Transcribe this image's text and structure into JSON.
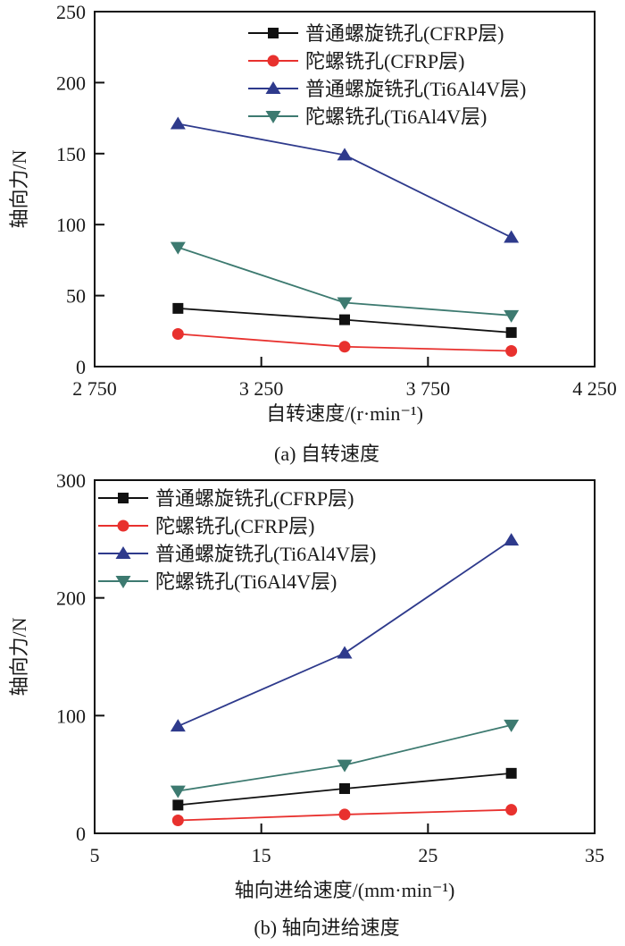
{
  "chart_data": [
    {
      "type": "line",
      "caption": "(a) 自转速度",
      "xlabel": "自转速度/(r·min⁻¹)",
      "ylabel": "轴向力/N",
      "xlim": [
        2750,
        4250
      ],
      "ylim": [
        0,
        250
      ],
      "xticks": [
        2750,
        3250,
        3750,
        4250
      ],
      "xtick_labels": [
        "2 750",
        "3 250",
        "3 750",
        "4 250"
      ],
      "yticks": [
        0,
        50,
        100,
        150,
        200,
        250
      ],
      "ytick_labels": [
        "0",
        "50",
        "100",
        "150",
        "200",
        "250"
      ],
      "legend_position": "top-right",
      "x": [
        3000,
        3500,
        4000
      ],
      "series": [
        {
          "name": "普通螺旋铣孔(CFRP层)",
          "marker": "square",
          "color": "#111111",
          "values": [
            41,
            33,
            24
          ]
        },
        {
          "name": "陀螺铣孔(CFRP层)",
          "marker": "circle",
          "color": "#e8312e",
          "values": [
            23,
            14,
            11
          ]
        },
        {
          "name": "普通螺旋铣孔(Ti6Al4V层)",
          "marker": "triangle-up",
          "color": "#2e3a8c",
          "values": [
            171,
            149,
            91
          ]
        },
        {
          "name": "陀螺铣孔(Ti6Al4V层)",
          "marker": "triangle-down",
          "color": "#3d7a70",
          "values": [
            84,
            45,
            36
          ]
        }
      ]
    },
    {
      "type": "line",
      "caption": "(b) 轴向进给速度",
      "xlabel": "轴向进给速度/(mm·min⁻¹)",
      "ylabel": "轴向力/N",
      "xlim": [
        5,
        35
      ],
      "ylim": [
        0,
        300
      ],
      "xticks": [
        5,
        15,
        25,
        35
      ],
      "xtick_labels": [
        "5",
        "15",
        "25",
        "35"
      ],
      "yticks": [
        0,
        100,
        200,
        300
      ],
      "ytick_labels": [
        "0",
        "100",
        "200",
        "300"
      ],
      "legend_position": "top-left",
      "x": [
        10,
        20,
        30
      ],
      "series": [
        {
          "name": "普通螺旋铣孔(CFRP层)",
          "marker": "square",
          "color": "#111111",
          "values": [
            24,
            38,
            51
          ]
        },
        {
          "name": "陀螺铣孔(CFRP层)",
          "marker": "circle",
          "color": "#e8312e",
          "values": [
            11,
            16,
            20
          ]
        },
        {
          "name": "普通螺旋铣孔(Ti6Al4V层)",
          "marker": "triangle-up",
          "color": "#2e3a8c",
          "values": [
            91,
            153,
            249
          ]
        },
        {
          "name": "陀螺铣孔(Ti6Al4V层)",
          "marker": "triangle-down",
          "color": "#3d7a70",
          "values": [
            36,
            58,
            92
          ]
        }
      ]
    }
  ]
}
